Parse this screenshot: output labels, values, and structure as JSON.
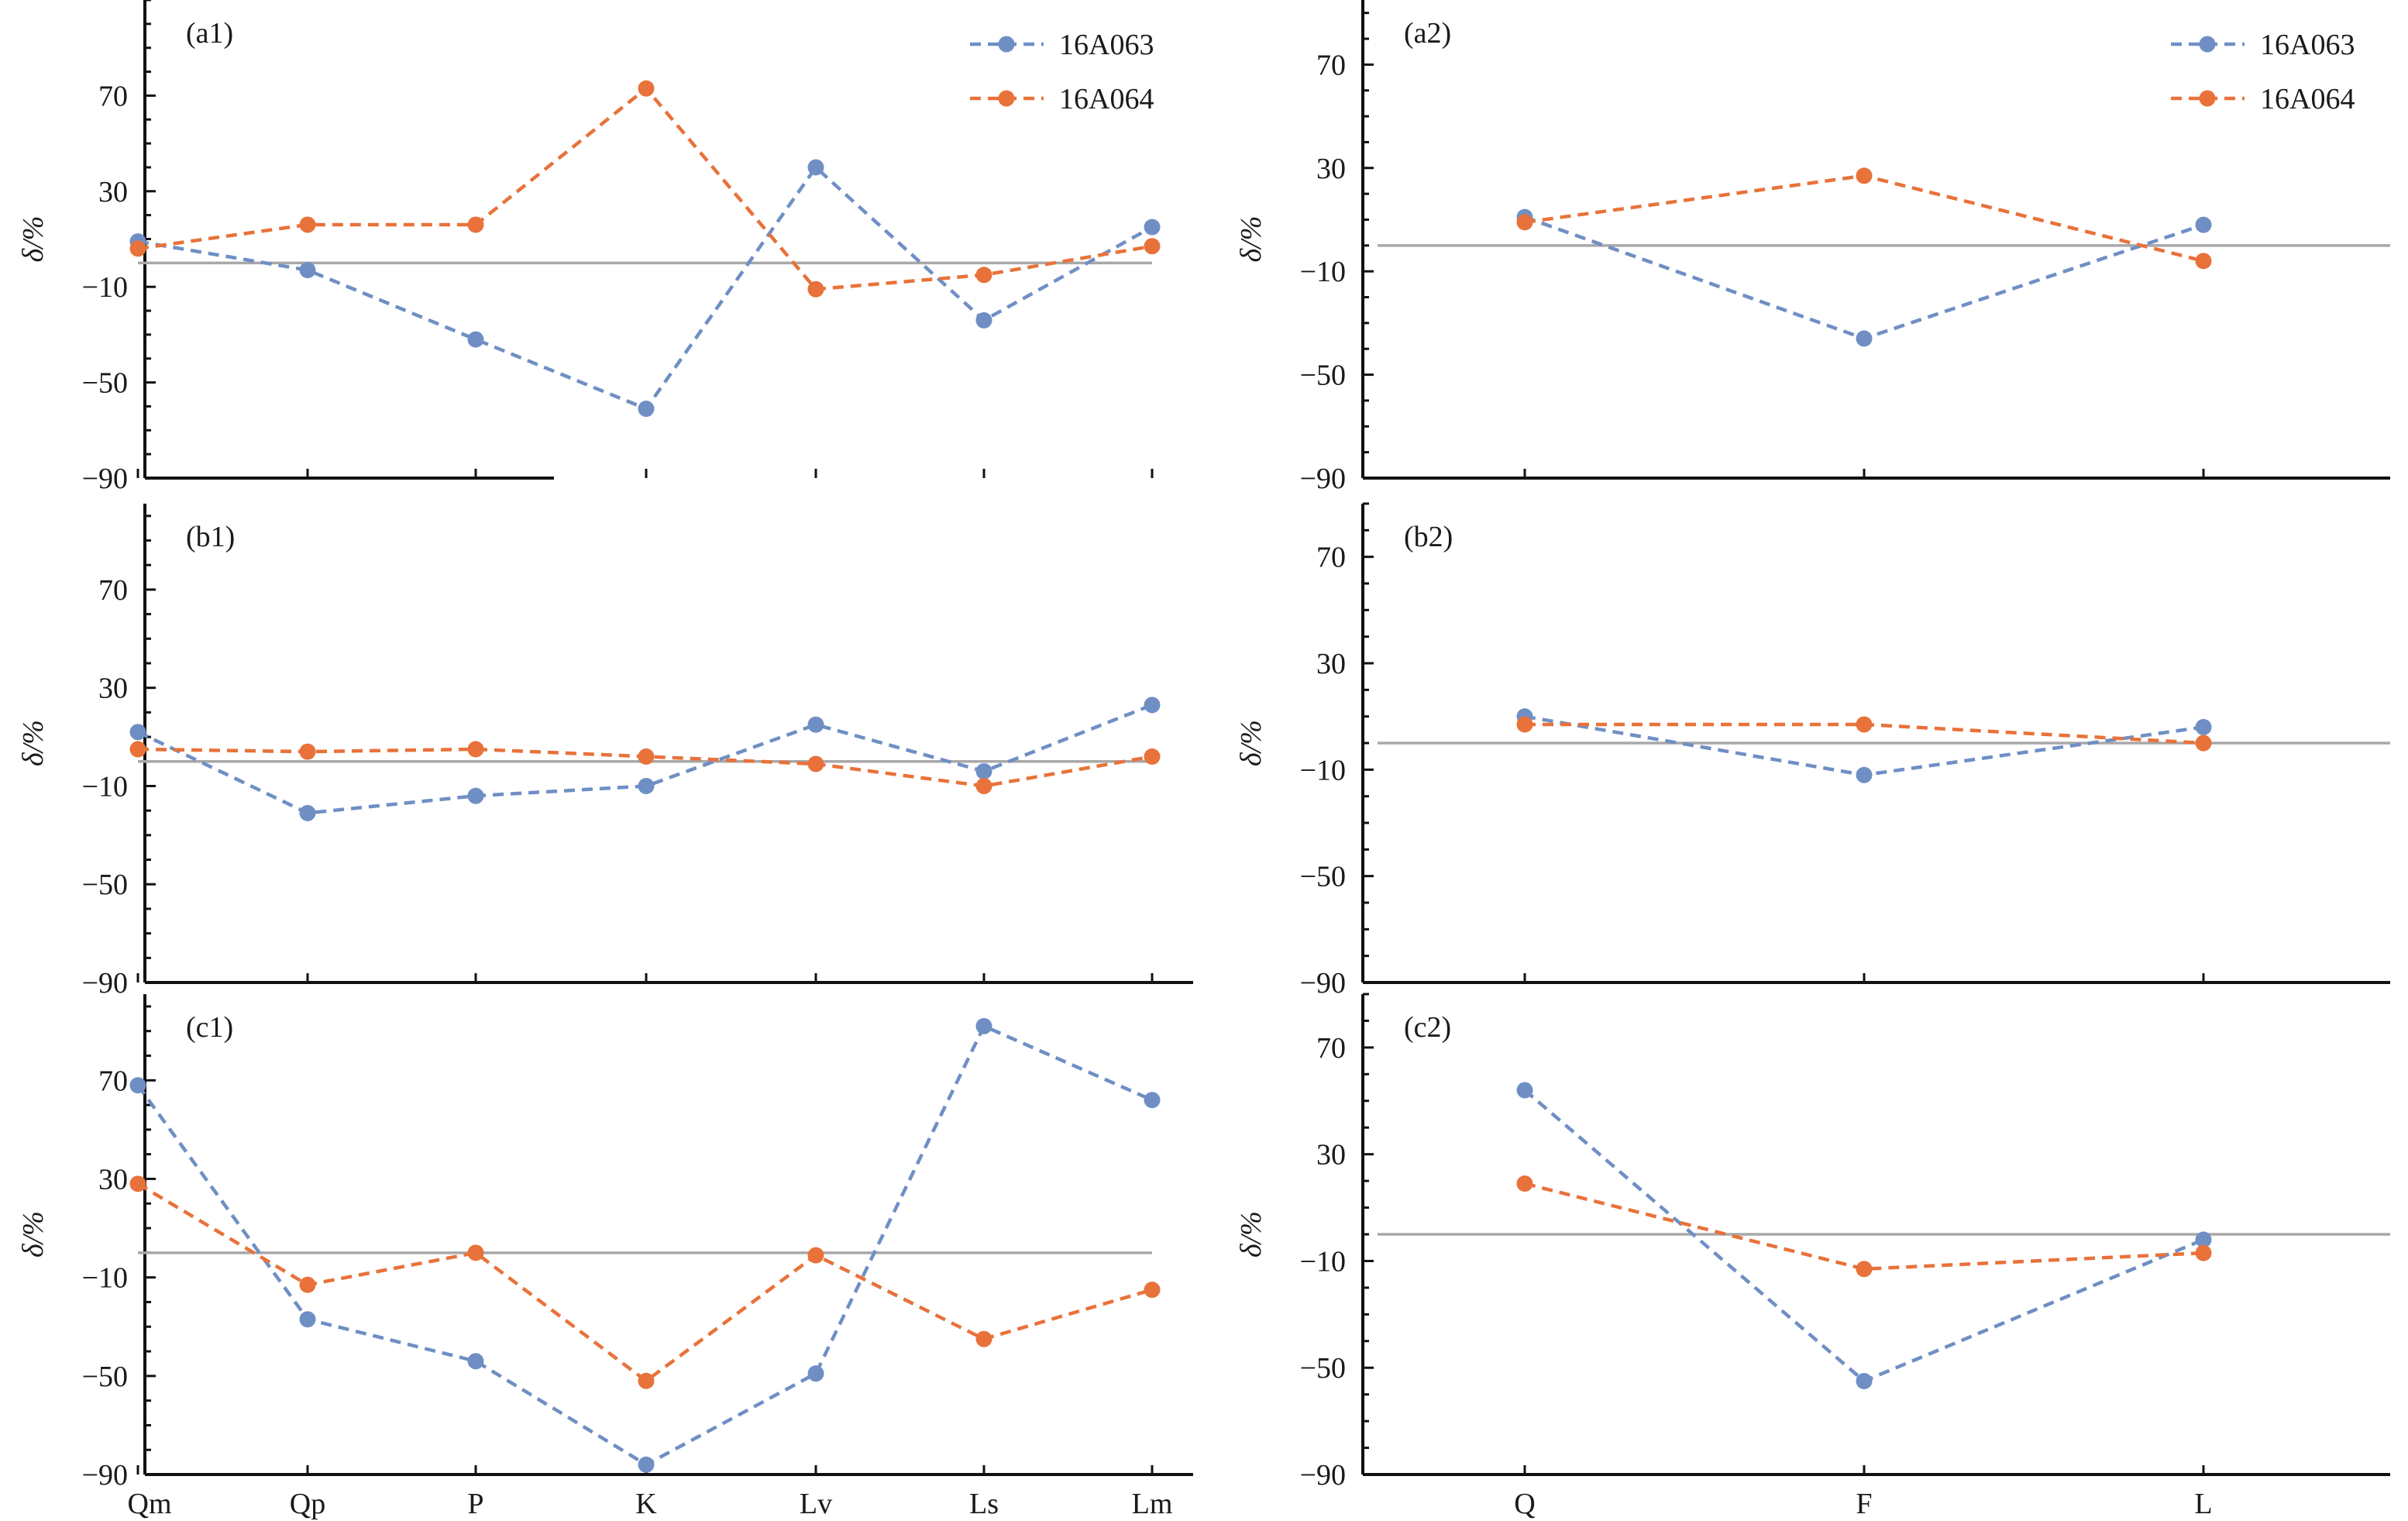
{
  "colors": {
    "16A063": "#6f8fc4",
    "16A064": "#e8723a",
    "zero_line": "#a8a8a8",
    "axis": "#111111"
  },
  "legend": [
    {
      "name": "16A063",
      "color": "#6f8fc4",
      "marker": "circle",
      "line": "dashed"
    },
    {
      "name": "16A064",
      "color": "#e8723a",
      "marker": "circle",
      "line": "dashed"
    }
  ],
  "chart_data": [
    {
      "panel": "(a1)",
      "type": "line",
      "ylabel": "δ/%",
      "categories": [
        "Qm",
        "Qp",
        "P",
        "K",
        "Lv",
        "Ls",
        "Lm"
      ],
      "ylim": [
        -90,
        110
      ],
      "yticks": [
        -90,
        -50,
        -10,
        30,
        70
      ],
      "series": [
        {
          "name": "16A063",
          "values": [
            9,
            -3,
            -32,
            -61,
            40,
            -24,
            15
          ]
        },
        {
          "name": "16A064",
          "values": [
            6,
            16,
            16,
            73,
            -11,
            -5,
            7
          ]
        }
      ],
      "show_legend": true,
      "show_xlabels": false
    },
    {
      "panel": "(a2)",
      "type": "line",
      "ylabel": "δ/%",
      "categories": [
        "Q",
        "F",
        "L"
      ],
      "ylim": [
        -90,
        95
      ],
      "yticks": [
        -90,
        -50,
        -10,
        30,
        70
      ],
      "series": [
        {
          "name": "16A063",
          "values": [
            11,
            -36,
            8
          ]
        },
        {
          "name": "16A064",
          "values": [
            9,
            27,
            -6
          ]
        }
      ],
      "show_legend": true,
      "show_xlabels": false
    },
    {
      "panel": "(b1)",
      "type": "line",
      "ylabel": "δ/%",
      "categories": [
        "Qm",
        "Qp",
        "P",
        "K",
        "Lv",
        "Ls",
        "Lm"
      ],
      "ylim": [
        -90,
        105
      ],
      "yticks": [
        -90,
        -50,
        -10,
        30,
        70
      ],
      "series": [
        {
          "name": "16A063",
          "values": [
            12,
            -21,
            -14,
            -10,
            15,
            -4,
            23
          ]
        },
        {
          "name": "16A064",
          "values": [
            5,
            4,
            5,
            2,
            -1,
            -10,
            2
          ]
        }
      ],
      "show_legend": false,
      "show_xlabels": false
    },
    {
      "panel": "(b2)",
      "type": "line",
      "ylabel": "δ/%",
      "categories": [
        "Q",
        "F",
        "L"
      ],
      "ylim": [
        -90,
        90
      ],
      "yticks": [
        -90,
        -50,
        -10,
        30,
        70
      ],
      "series": [
        {
          "name": "16A063",
          "values": [
            10,
            -12,
            6
          ]
        },
        {
          "name": "16A064",
          "values": [
            7,
            7,
            0
          ]
        }
      ],
      "show_legend": false,
      "show_xlabels": false
    },
    {
      "panel": "(c1)",
      "type": "line",
      "ylabel": "δ/%",
      "categories": [
        "Qm",
        "Qp",
        "P",
        "K",
        "Lv",
        "Ls",
        "Lm"
      ],
      "ylim": [
        -90,
        105
      ],
      "yticks": [
        -90,
        -50,
        -10,
        30,
        70
      ],
      "series": [
        {
          "name": "16A063",
          "values": [
            68,
            -27,
            -44,
            -86,
            -49,
            92,
            62
          ]
        },
        {
          "name": "16A064",
          "values": [
            28,
            -13,
            0,
            -52,
            -1,
            -35,
            -15
          ]
        }
      ],
      "show_legend": false,
      "show_xlabels": true
    },
    {
      "panel": "(c2)",
      "type": "line",
      "ylabel": "δ/%",
      "categories": [
        "Q",
        "F",
        "L"
      ],
      "ylim": [
        -90,
        90
      ],
      "yticks": [
        -90,
        -50,
        -10,
        30,
        70
      ],
      "series": [
        {
          "name": "16A063",
          "values": [
            54,
            -55,
            -2
          ]
        },
        {
          "name": "16A064",
          "values": [
            19,
            -13,
            -7
          ]
        }
      ],
      "show_legend": false,
      "show_xlabels": true
    }
  ]
}
